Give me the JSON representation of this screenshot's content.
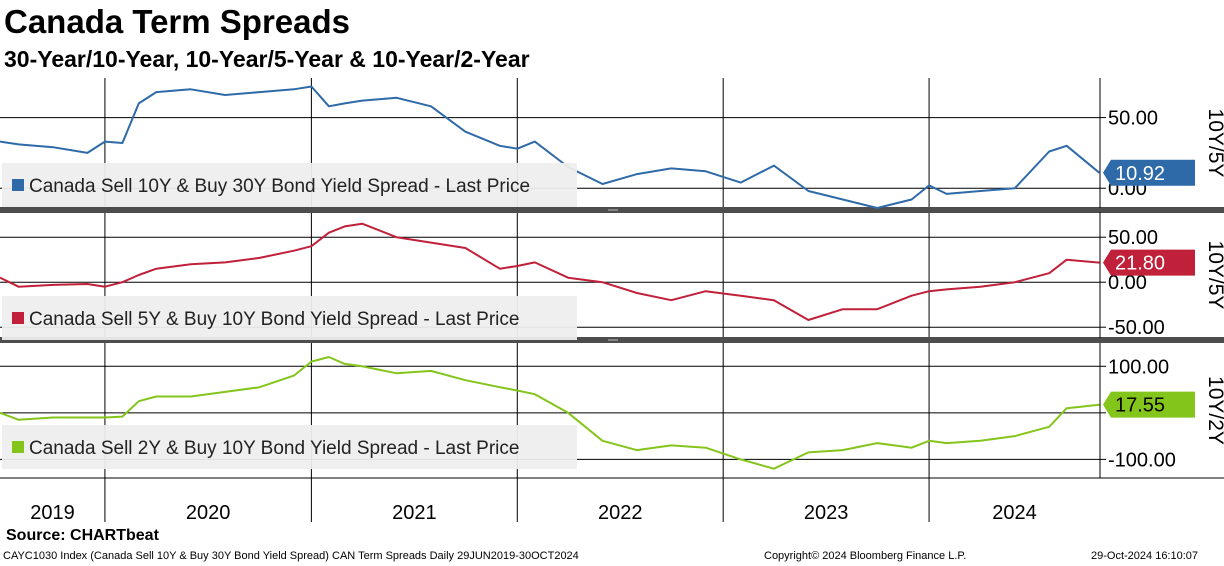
{
  "title": "Canada Term Spreads",
  "subtitle": "30-Year/10-Year, 10-Year/5-Year & 10-Year/2-Year",
  "footer": {
    "source": "Source: CHARTbeat",
    "description": "CAYC1030 Index (Canada Sell 10Y & Buy 30Y Bond Yield Spread) CAN Term Spreads  Daily 29JUN2019-30OCT2024",
    "copyright": "Copyright© 2024 Bloomberg Finance L.P.",
    "timestamp": "29-Oct-2024 16:10:07"
  },
  "x_axis": {
    "ticks": [
      "2019",
      "2020",
      "2021",
      "2022",
      "2023",
      "2024"
    ]
  },
  "chart_data": [
    {
      "type": "line",
      "panel": "10Y/5Y",
      "axis_label": "10Y/5Y",
      "ylim": [
        -14,
        78
      ],
      "y_ticks": [
        0,
        50
      ],
      "y_tick_labels": [
        "0.00",
        "50.00"
      ],
      "grid": true,
      "legend_placement": "bottom-left",
      "last_value_label": "10.92",
      "color": "#2e6aa8",
      "series": [
        {
          "name": "Canada Sell 10Y & Buy 30Y Bond Yield Spread - Last Price",
          "x": [
            "2019-06-29",
            "2019-08",
            "2019-10",
            "2019-12",
            "2020-01",
            "2020-02",
            "2020-03",
            "2020-04",
            "2020-06",
            "2020-08",
            "2020-10",
            "2020-12",
            "2021-01",
            "2021-02",
            "2021-03",
            "2021-04",
            "2021-06",
            "2021-08",
            "2021-10",
            "2021-12",
            "2022-01",
            "2022-02",
            "2022-04",
            "2022-06",
            "2022-08",
            "2022-10",
            "2022-12",
            "2023-02",
            "2023-04",
            "2023-06",
            "2023-08",
            "2023-10",
            "2023-12",
            "2024-01",
            "2024-02",
            "2024-04",
            "2024-06",
            "2024-08",
            "2024-09",
            "2024-10-29"
          ],
          "values": [
            33,
            31,
            29,
            25,
            33,
            32,
            60,
            68,
            70,
            66,
            68,
            70,
            72,
            58,
            60,
            62,
            64,
            58,
            40,
            30,
            28,
            33,
            15,
            3,
            10,
            14,
            12,
            4,
            16,
            -2,
            -8,
            -14,
            -8,
            2,
            -4,
            -2,
            0,
            26,
            30,
            10.92
          ]
        }
      ]
    },
    {
      "type": "line",
      "panel": "10Y/5Y",
      "axis_label": "10Y/5Y",
      "ylim": [
        -62,
        78
      ],
      "y_ticks": [
        -50,
        0,
        50
      ],
      "y_tick_labels": [
        "-50.00",
        "0.00",
        "50.00"
      ],
      "grid": true,
      "legend_placement": "bottom-left",
      "last_value_label": "21.80",
      "color": "#c0203a",
      "series": [
        {
          "name": "Canada Sell 5Y & Buy 10Y Bond Yield Spread - Last Price",
          "x": [
            "2019-06-29",
            "2019-08",
            "2019-10",
            "2019-12",
            "2020-01",
            "2020-02",
            "2020-03",
            "2020-04",
            "2020-06",
            "2020-08",
            "2020-10",
            "2020-12",
            "2021-01",
            "2021-02",
            "2021-03",
            "2021-04",
            "2021-06",
            "2021-08",
            "2021-10",
            "2021-12",
            "2022-01",
            "2022-02",
            "2022-04",
            "2022-06",
            "2022-08",
            "2022-10",
            "2022-12",
            "2023-02",
            "2023-04",
            "2023-06",
            "2023-08",
            "2023-10",
            "2023-12",
            "2024-01",
            "2024-02",
            "2024-04",
            "2024-06",
            "2024-08",
            "2024-09",
            "2024-10-29"
          ],
          "values": [
            5,
            -5,
            -3,
            -2,
            -5,
            0,
            8,
            15,
            20,
            22,
            27,
            35,
            40,
            55,
            62,
            65,
            50,
            44,
            38,
            15,
            18,
            22,
            5,
            0,
            -12,
            -20,
            -10,
            -15,
            -20,
            -42,
            -30,
            -30,
            -15,
            -10,
            -8,
            -5,
            0,
            10,
            25,
            21.8
          ]
        }
      ]
    },
    {
      "type": "line",
      "panel": "10Y/2Y",
      "axis_label": "10Y/2Y",
      "ylim": [
        -140,
        150
      ],
      "y_ticks": [
        -100,
        0,
        100
      ],
      "y_tick_labels": [
        "-100.00",
        "",
        "100.00"
      ],
      "grid": true,
      "legend_placement": "bottom-left",
      "last_value_label": "17.55",
      "color": "#84c51b",
      "series": [
        {
          "name": "Canada Sell 2Y & Buy 10Y Bond Yield Spread - Last Price",
          "x": [
            "2019-06-29",
            "2019-08",
            "2019-10",
            "2019-12",
            "2020-01",
            "2020-02",
            "2020-03",
            "2020-04",
            "2020-06",
            "2020-08",
            "2020-10",
            "2020-12",
            "2021-01",
            "2021-02",
            "2021-03",
            "2021-04",
            "2021-06",
            "2021-08",
            "2021-10",
            "2021-12",
            "2022-01",
            "2022-02",
            "2022-04",
            "2022-06",
            "2022-08",
            "2022-10",
            "2022-12",
            "2023-02",
            "2023-04",
            "2023-06",
            "2023-08",
            "2023-10",
            "2023-12",
            "2024-01",
            "2024-02",
            "2024-04",
            "2024-06",
            "2024-08",
            "2024-09",
            "2024-10-29"
          ],
          "values": [
            0,
            -15,
            -10,
            -10,
            -10,
            -8,
            25,
            35,
            35,
            45,
            55,
            80,
            110,
            120,
            105,
            100,
            85,
            90,
            70,
            55,
            48,
            40,
            0,
            -60,
            -80,
            -70,
            -75,
            -100,
            -120,
            -85,
            -80,
            -65,
            -75,
            -60,
            -65,
            -60,
            -50,
            -30,
            10,
            17.55
          ]
        }
      ]
    }
  ]
}
